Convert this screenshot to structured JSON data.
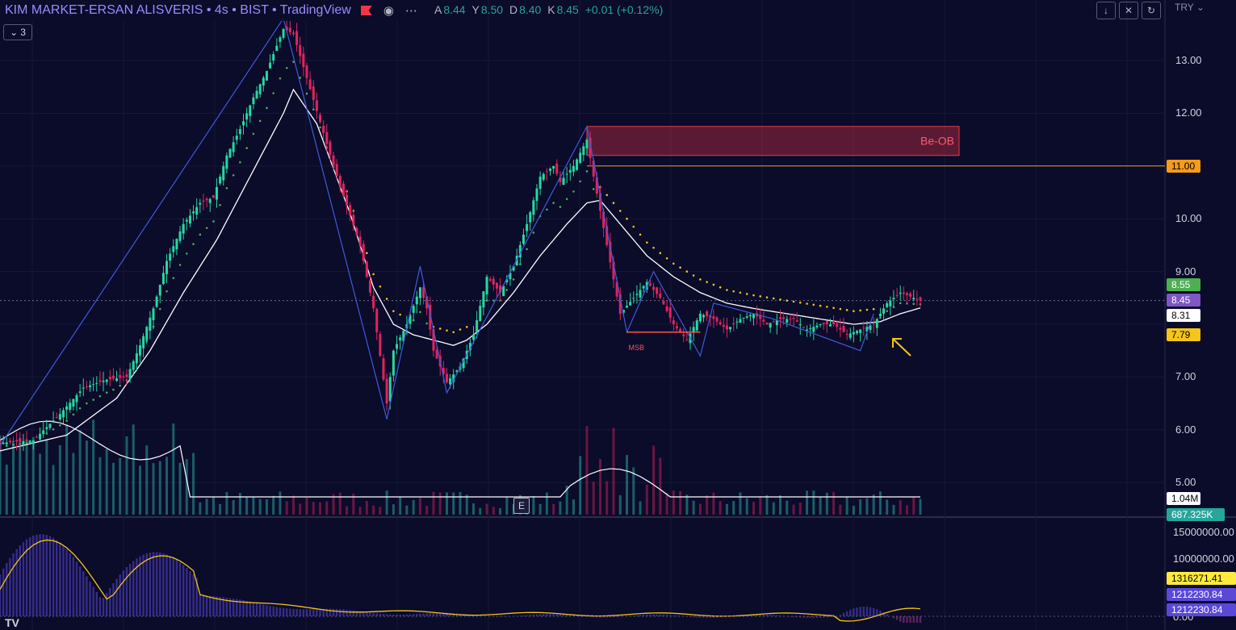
{
  "header": {
    "title": "KIM MARKET-ERSAN ALISVERIS • 4s • BIST • TradingView",
    "ohlc": [
      {
        "k": "A",
        "v": "8.44"
      },
      {
        "k": "Y",
        "v": "8.50"
      },
      {
        "k": "D",
        "v": "8.40"
      },
      {
        "k": "K",
        "v": "8.45"
      },
      {
        "k": "",
        "v": "+0.01 (+0.12%)"
      }
    ],
    "indicator_count": "3",
    "currency": "TRY"
  },
  "price_axis": {
    "ticks": [
      "13.00",
      "12.00",
      "11.00",
      "10.00",
      "9.00",
      "7.00",
      "6.00",
      "5.00"
    ],
    "tags": [
      {
        "label": "11.00",
        "bg": "#f59c1b",
        "fg": "#000000"
      },
      {
        "label": "8.55",
        "bg": "#4caf50",
        "fg": "#ffffff"
      },
      {
        "label": "8.45",
        "bg": "#7e57c2",
        "fg": "#ffffff"
      },
      {
        "label": "8.31",
        "bg": "#ffffff",
        "fg": "#000000"
      },
      {
        "label": "7.79",
        "bg": "#f5c518",
        "fg": "#000000"
      },
      {
        "label": "1.04M",
        "bg": "#ffffff",
        "fg": "#000000"
      },
      {
        "label": "687.325K",
        "bg": "#26a69a",
        "fg": "#ffffff"
      }
    ]
  },
  "osc_axis": {
    "ticks": [
      "15000000.00",
      "10000000.00",
      "0.00"
    ],
    "tags": [
      {
        "label": "1316271.41",
        "bg": "#ffeb3b",
        "fg": "#000000"
      },
      {
        "label": "1212230.84",
        "bg": "#5b48d9",
        "fg": "#ffffff"
      },
      {
        "label": "1212230.84",
        "bg": "#5b48d9",
        "fg": "#ffffff"
      }
    ]
  },
  "annotations": {
    "order_block_label": "Be-OB",
    "msb_label": "MSB",
    "earnings_marker": "E",
    "logo": "TV"
  },
  "colors": {
    "background": "#0b0b2a",
    "up": "#26d9a0",
    "down": "#e0245e",
    "zigzag": "#3f5bd9",
    "ema": "#ffffff",
    "sar_up": "#4caf50",
    "sar_down": "#f5c518",
    "order_block": "#f23645",
    "resistance": "#f59c1b",
    "osc_line": "#f5c518",
    "osc_hist": "#5b48d9"
  },
  "chart_data": {
    "type": "candlestick",
    "title": "KIM MARKET-ERSAN ALISVERIS • 4s • BIST",
    "ylim": [
      4.6,
      13.9
    ],
    "y_ticks": [
      5,
      6,
      7,
      8,
      9,
      10,
      11,
      12,
      13
    ],
    "close_path": [
      [
        0,
        5.75
      ],
      [
        10,
        5.8
      ],
      [
        18,
        6.3
      ],
      [
        25,
        6.8
      ],
      [
        32,
        6.95
      ],
      [
        38,
        7.0
      ],
      [
        42,
        7.6
      ],
      [
        46,
        8.3
      ],
      [
        50,
        9.2
      ],
      [
        55,
        9.9
      ],
      [
        60,
        10.3
      ],
      [
        64,
        10.4
      ],
      [
        68,
        11.2
      ],
      [
        72,
        11.7
      ],
      [
        76,
        12.3
      ],
      [
        80,
        12.8
      ],
      [
        85,
        13.6
      ],
      [
        88,
        13.5
      ],
      [
        100,
        11.0
      ],
      [
        108,
        9.5
      ],
      [
        112,
        8.3
      ],
      [
        114,
        7.4
      ],
      [
        116,
        6.5
      ],
      [
        118,
        7.5
      ],
      [
        122,
        8.0
      ],
      [
        126,
        8.7
      ],
      [
        128,
        8.3
      ],
      [
        130,
        7.5
      ],
      [
        134,
        6.9
      ],
      [
        138,
        7.2
      ],
      [
        142,
        7.8
      ],
      [
        146,
        8.9
      ],
      [
        150,
        8.6
      ],
      [
        154,
        9.1
      ],
      [
        158,
        9.9
      ],
      [
        162,
        10.8
      ],
      [
        166,
        11.0
      ],
      [
        168,
        10.7
      ],
      [
        172,
        11.0
      ],
      [
        176,
        11.5
      ],
      [
        178,
        10.8
      ],
      [
        182,
        9.5
      ],
      [
        186,
        8.2
      ],
      [
        190,
        8.5
      ],
      [
        194,
        8.8
      ],
      [
        198,
        8.5
      ],
      [
        202,
        8.0
      ],
      [
        206,
        7.7
      ],
      [
        210,
        8.2
      ],
      [
        214,
        8.1
      ],
      [
        218,
        7.9
      ],
      [
        222,
        8.1
      ],
      [
        226,
        8.2
      ],
      [
        230,
        8.0
      ],
      [
        234,
        8.1
      ],
      [
        238,
        8.1
      ],
      [
        242,
        7.9
      ],
      [
        246,
        8.0
      ],
      [
        250,
        8.0
      ],
      [
        254,
        7.8
      ],
      [
        258,
        7.9
      ],
      [
        262,
        8.0
      ],
      [
        266,
        8.4
      ],
      [
        270,
        8.6
      ],
      [
        274,
        8.5
      ],
      [
        276,
        8.45
      ]
    ],
    "ema_path": [
      [
        0,
        5.6
      ],
      [
        20,
        5.9
      ],
      [
        35,
        6.6
      ],
      [
        45,
        7.5
      ],
      [
        55,
        8.6
      ],
      [
        65,
        9.6
      ],
      [
        75,
        10.8
      ],
      [
        85,
        12.0
      ],
      [
        88,
        12.45
      ],
      [
        95,
        11.8
      ],
      [
        105,
        10.1
      ],
      [
        112,
        8.7
      ],
      [
        118,
        8.0
      ],
      [
        124,
        7.8
      ],
      [
        130,
        7.7
      ],
      [
        136,
        7.6
      ],
      [
        140,
        7.7
      ],
      [
        146,
        8.0
      ],
      [
        154,
        8.6
      ],
      [
        162,
        9.3
      ],
      [
        170,
        9.9
      ],
      [
        176,
        10.3
      ],
      [
        180,
        10.35
      ],
      [
        186,
        9.9
      ],
      [
        194,
        9.3
      ],
      [
        202,
        8.9
      ],
      [
        210,
        8.6
      ],
      [
        218,
        8.4
      ],
      [
        226,
        8.3
      ],
      [
        236,
        8.2
      ],
      [
        246,
        8.1
      ],
      [
        256,
        8.0
      ],
      [
        264,
        8.05
      ],
      [
        270,
        8.2
      ],
      [
        276,
        8.31
      ]
    ],
    "zigzag": [
      [
        0,
        5.7
      ],
      [
        85,
        13.8
      ],
      [
        116,
        6.2
      ],
      [
        126,
        9.1
      ],
      [
        134,
        6.7
      ],
      [
        176,
        11.75
      ],
      [
        188,
        7.85
      ],
      [
        196,
        9.0
      ],
      [
        210,
        7.4
      ],
      [
        214,
        8.4
      ],
      [
        232,
        8.1
      ],
      [
        258,
        7.5
      ],
      [
        262,
        8.2
      ]
    ],
    "order_block": {
      "top": 11.75,
      "bottom": 11.2,
      "x_start": 176,
      "x_end": 296
    },
    "resistance": 11.0,
    "msb_level": 7.85,
    "last_price": 8.45,
    "x_count": 277
  }
}
